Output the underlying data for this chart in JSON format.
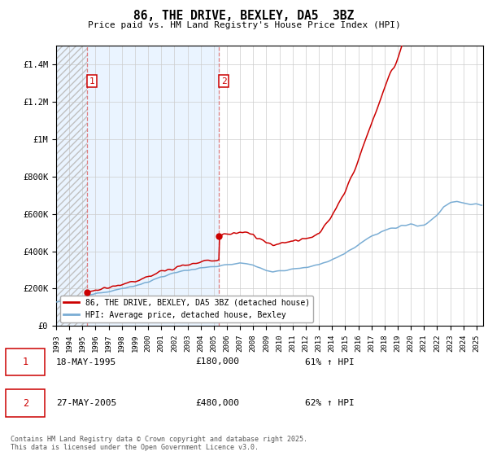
{
  "title": "86, THE DRIVE, BEXLEY, DA5  3BZ",
  "subtitle": "Price paid vs. HM Land Registry's House Price Index (HPI)",
  "ylim": [
    0,
    1500000
  ],
  "xlim_start": 1993,
  "xlim_end": 2025.5,
  "sale1_date": 1995.38,
  "sale1_price": 180000,
  "sale1_label": "1",
  "sale2_date": 2005.41,
  "sale2_price": 480000,
  "sale2_label": "2",
  "hpi_line_color": "#7aadd4",
  "price_line_color": "#cc0000",
  "legend_line1": "86, THE DRIVE, BEXLEY, DA5 3BZ (detached house)",
  "legend_line2": "HPI: Average price, detached house, Bexley",
  "footer": "Contains HM Land Registry data © Crown copyright and database right 2025.\nThis data is licensed under the Open Government Licence v3.0.",
  "light_blue_bg": "#ddeeff",
  "hatch_color": "#c0c0c0",
  "grid_color": "#cccccc",
  "dashed_line_color": "#dd6666"
}
